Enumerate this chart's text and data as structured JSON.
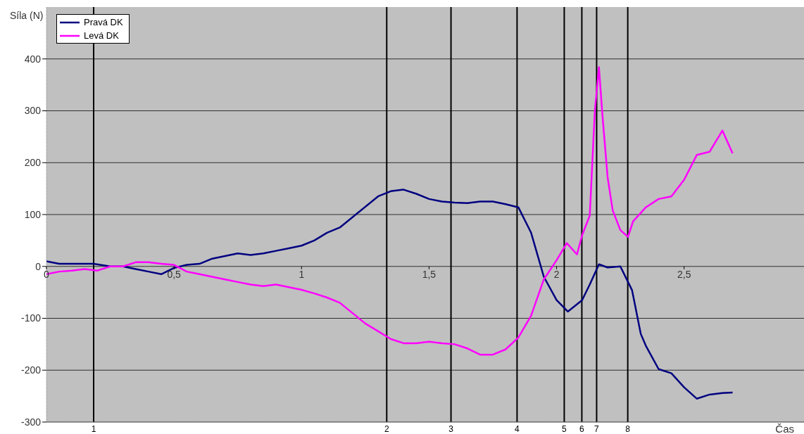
{
  "chart_data": {
    "type": "line",
    "xlabel": "Čas",
    "ylabel": "Síla (N)",
    "xlim": [
      0,
      2.97
    ],
    "ylim": [
      -300,
      500
    ],
    "xticks": [
      0,
      {
        "value": 0.5,
        "label": "0,5"
      },
      1,
      {
        "value": 1.5,
        "label": "1,5"
      },
      2,
      {
        "value": 2.5,
        "label": "2,5"
      }
    ],
    "yticks": [
      -300,
      -200,
      -100,
      0,
      100,
      200,
      300,
      400
    ],
    "grid": "y",
    "legend": "top left",
    "marker": "none",
    "line_style": "solid",
    "ref_lines": [
      {
        "axis": "x",
        "value": 0.185,
        "color": "#000000"
      },
      {
        "axis": "x",
        "value": 1.334,
        "color": "#000000"
      },
      {
        "axis": "x",
        "value": 1.586,
        "color": "#000000"
      },
      {
        "axis": "x",
        "value": 1.845,
        "color": "#000000"
      },
      {
        "axis": "x",
        "value": 2.03,
        "color": "#000000"
      },
      {
        "axis": "x",
        "value": 2.099,
        "color": "#000000"
      },
      {
        "axis": "x",
        "value": 2.157,
        "color": "#000000"
      },
      {
        "axis": "x",
        "value": 2.279,
        "color": "#000000"
      }
    ],
    "annotations": [
      {
        "text": "1",
        "x": 0.185,
        "y": -300
      },
      {
        "text": "2",
        "x": 1.334,
        "y": -300
      },
      {
        "text": "3",
        "x": 1.586,
        "y": -300
      },
      {
        "text": "4",
        "x": 1.845,
        "y": -300
      },
      {
        "text": "5",
        "x": 2.03,
        "y": -300
      },
      {
        "text": "6",
        "x": 2.099,
        "y": -300
      },
      {
        "text": "7",
        "x": 2.157,
        "y": -300
      },
      {
        "text": "8",
        "x": 2.279,
        "y": -300
      }
    ],
    "series": [
      {
        "name": "Pravá DK",
        "color": "#000080",
        "x": [
          0,
          0.05,
          0.1,
          0.185,
          0.25,
          0.3,
          0.35,
          0.4,
          0.45,
          0.5,
          0.55,
          0.6,
          0.65,
          0.7,
          0.75,
          0.8,
          0.85,
          0.9,
          0.95,
          1.0,
          1.05,
          1.1,
          1.15,
          1.2,
          1.25,
          1.3,
          1.35,
          1.4,
          1.45,
          1.5,
          1.55,
          1.6,
          1.65,
          1.7,
          1.75,
          1.8,
          1.85,
          1.9,
          1.95,
          2.0,
          2.044,
          2.1,
          2.13,
          2.166,
          2.2,
          2.25,
          2.296,
          2.33,
          2.35,
          2.4,
          2.45,
          2.5,
          2.55,
          2.6,
          2.65,
          2.69
        ],
        "values": [
          10,
          5,
          5,
          5,
          0,
          0,
          -5,
          -10,
          -15,
          -3,
          3,
          5,
          15,
          20,
          25,
          22,
          25,
          30,
          35,
          40,
          50,
          65,
          75,
          95,
          115,
          135,
          145,
          148,
          140,
          130,
          125,
          123,
          122,
          125,
          125,
          120,
          114,
          65,
          -20,
          -65,
          -87,
          -65,
          -35,
          4,
          -2,
          0,
          -46,
          -130,
          -153,
          -198,
          -206,
          -233,
          -255,
          -247,
          -244,
          -243
        ]
      },
      {
        "name": "Levá DK",
        "color": "#ff00ff",
        "x": [
          0,
          0.05,
          0.1,
          0.15,
          0.2,
          0.25,
          0.3,
          0.35,
          0.4,
          0.45,
          0.5,
          0.55,
          0.6,
          0.65,
          0.7,
          0.75,
          0.8,
          0.85,
          0.9,
          0.95,
          1.0,
          1.05,
          1.1,
          1.15,
          1.2,
          1.25,
          1.3,
          1.35,
          1.4,
          1.45,
          1.5,
          1.55,
          1.6,
          1.65,
          1.7,
          1.75,
          1.8,
          1.85,
          1.9,
          1.95,
          2.0,
          2.04,
          2.08,
          2.1,
          2.13,
          2.15,
          2.166,
          2.18,
          2.2,
          2.22,
          2.25,
          2.28,
          2.3,
          2.35,
          2.4,
          2.45,
          2.5,
          2.55,
          2.6,
          2.65,
          2.69
        ],
        "values": [
          -15,
          -10,
          -8,
          -5,
          -8,
          0,
          0,
          8,
          8,
          5,
          3,
          -10,
          -15,
          -20,
          -25,
          -30,
          -35,
          -38,
          -35,
          -40,
          -45,
          -52,
          -60,
          -70,
          -90,
          -110,
          -125,
          -140,
          -148,
          -148,
          -145,
          -148,
          -150,
          -158,
          -170,
          -170,
          -160,
          -137,
          -95,
          -25,
          12,
          45,
          23,
          60,
          98,
          300,
          384,
          290,
          172,
          108,
          70,
          57,
          87,
          114,
          130,
          135,
          167,
          215,
          221,
          262,
          218
        ]
      }
    ]
  }
}
